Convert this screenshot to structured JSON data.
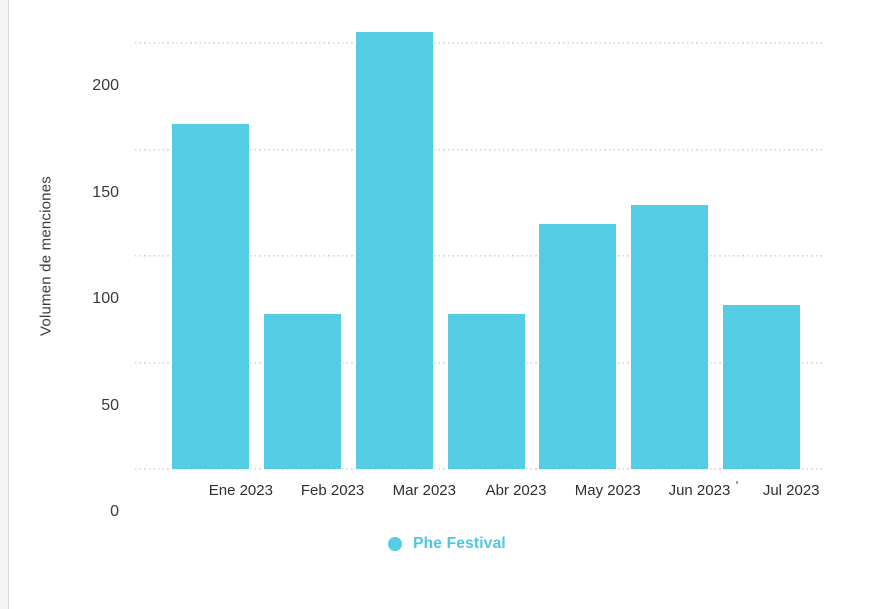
{
  "chart_data": {
    "type": "bar",
    "title": "",
    "categories": [
      "Ene 2023",
      "Feb 2023",
      "Mar 2023",
      "Abr 2023",
      "May 2023",
      "Jun 2023",
      "Jul 2023"
    ],
    "series": [
      {
        "name": "Phe Festival",
        "values": [
          162,
          73,
          205,
          73,
          115,
          124,
          77
        ],
        "color": "#54CDE4"
      }
    ],
    "xlabel": "",
    "ylabel": "Volumen de menciones",
    "ylim": [
      0,
      200
    ],
    "yticks": [
      0,
      50,
      100,
      150,
      200
    ],
    "grid": "horizontal-dotted",
    "legend_position": "bottom-center"
  },
  "legend": {
    "items": [
      {
        "label": "Phe Festival",
        "color": "#54CDE4",
        "text_color": "#4FC6DF"
      }
    ]
  },
  "colors": {
    "bar": "#54CDE4",
    "legend_text": "#4FC6DF",
    "axis_text": "#3a3a3a",
    "gridline": "#d6d6d6",
    "gutter_background": "#f5f5f6",
    "gutter_border": "#d8d8d8"
  }
}
